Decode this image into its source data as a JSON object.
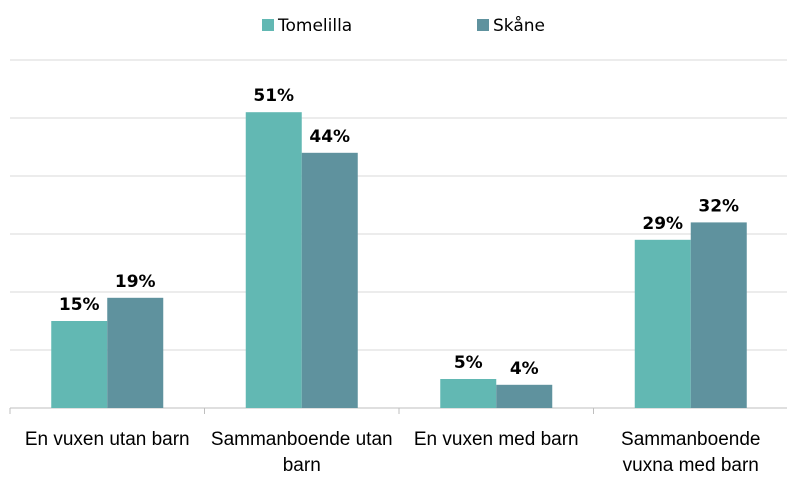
{
  "chart_data": {
    "type": "bar",
    "categories": [
      "En vuxen utan barn",
      "Sammanboende utan barn",
      "En vuxen med barn",
      "Sammanboende vuxna med barn"
    ],
    "series": [
      {
        "name": "Tomelilla",
        "color": "#62b8b3",
        "values": [
          15,
          51,
          5,
          29
        ],
        "value_labels": [
          "15%",
          "51%",
          "5%",
          "29%"
        ]
      },
      {
        "name": "Skåne",
        "color": "#5f929e",
        "values": [
          19,
          44,
          4,
          32
        ],
        "value_labels": [
          "19%",
          "44%",
          "4%",
          "32%"
        ]
      }
    ],
    "ylim": [
      0,
      60
    ],
    "yticks": [
      0,
      10,
      20,
      30,
      40,
      50,
      60
    ],
    "grid": true,
    "legend": "top"
  }
}
